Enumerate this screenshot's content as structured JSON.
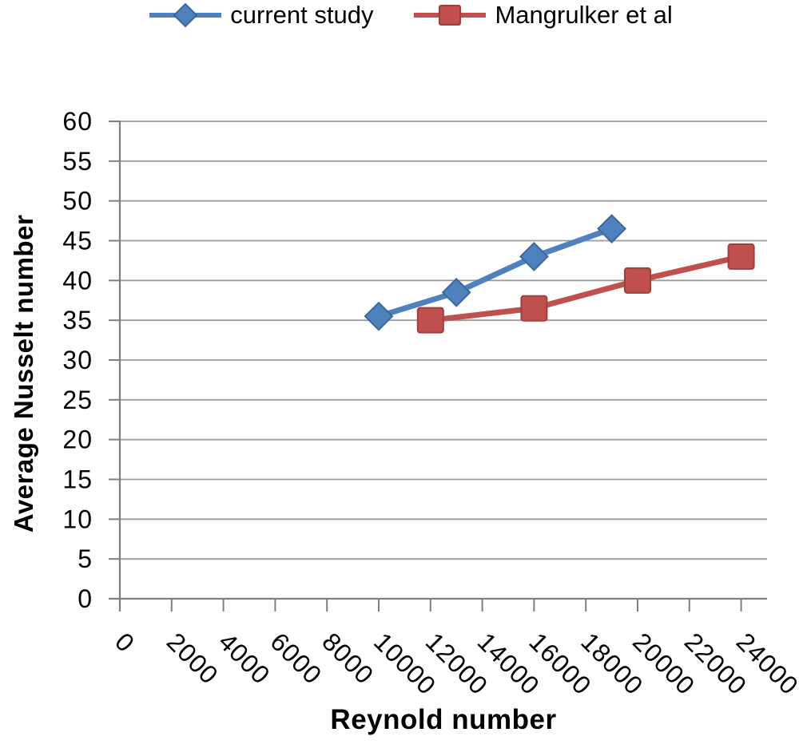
{
  "chart_data": {
    "type": "line",
    "title": "",
    "xlabel": "Reynold number",
    "ylabel": "Average Nusselt number",
    "xlim": [
      0,
      25000
    ],
    "ylim": [
      0,
      60
    ],
    "x_ticks": [
      0,
      2000,
      4000,
      6000,
      8000,
      10000,
      12000,
      14000,
      16000,
      18000,
      20000,
      22000,
      24000
    ],
    "y_ticks": [
      0,
      5,
      10,
      15,
      20,
      25,
      30,
      35,
      40,
      45,
      50,
      55,
      60
    ],
    "grid": "horizontal major gridlines",
    "legend_position": "top-center",
    "colors": {
      "axis": "#7f7f7f",
      "grid": "#9c9c9c",
      "text": "#000000",
      "background": "#ffffff"
    },
    "series": [
      {
        "name": "current study",
        "color": "#4F81BD",
        "edge_color": "#3A679C",
        "marker": "diamond",
        "points": [
          [
            10000,
            35.5
          ],
          [
            13000,
            38.5
          ],
          [
            16000,
            43
          ],
          [
            19000,
            46.5
          ]
        ]
      },
      {
        "name": "Mangrulker et al",
        "color": "#C0504D",
        "edge_color": "#A03E3B",
        "marker": "square",
        "points": [
          [
            12000,
            35
          ],
          [
            16000,
            36.5
          ],
          [
            20000,
            40
          ],
          [
            24000,
            43
          ]
        ]
      }
    ]
  }
}
